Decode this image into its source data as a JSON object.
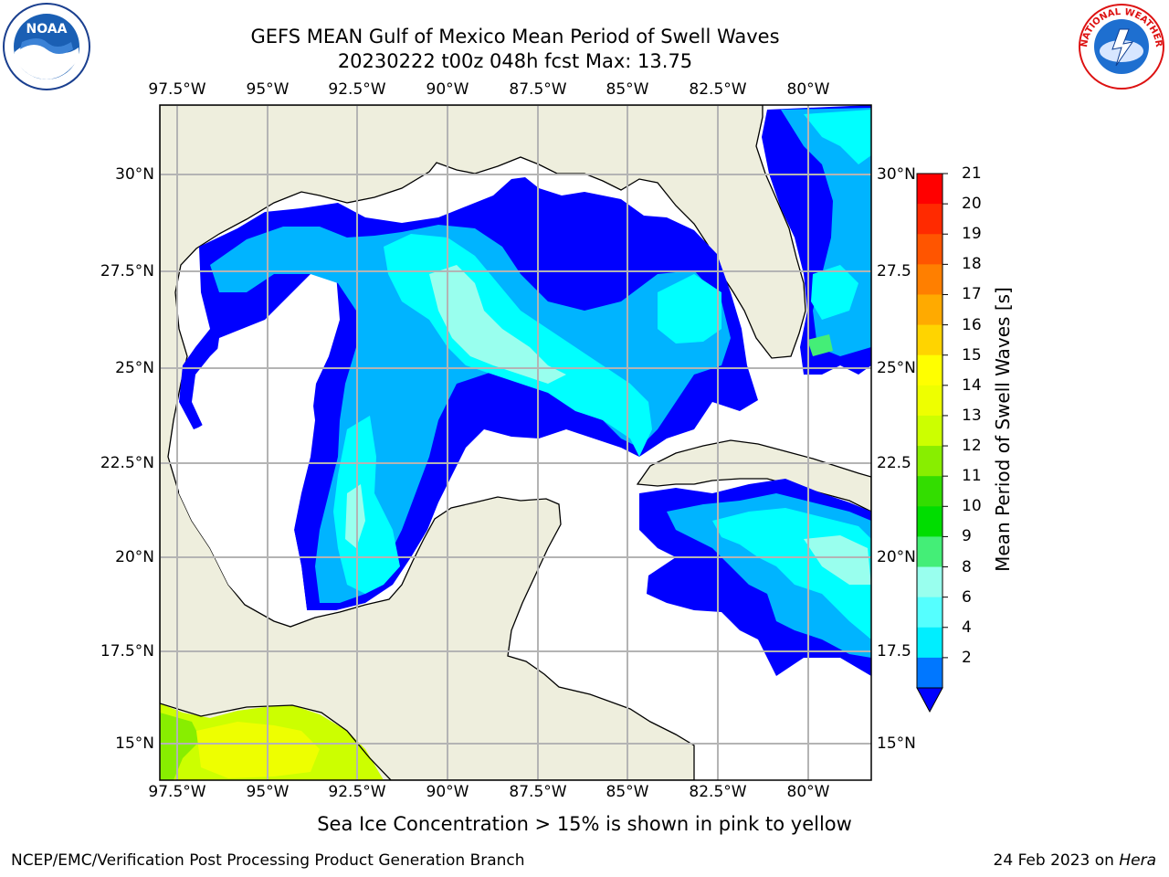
{
  "title": {
    "line1": "GEFS MEAN Gulf of Mexico Mean Period of Swell Waves",
    "line2": "20230222 t00z 048h fcst   Max: 13.75"
  },
  "axes": {
    "lon_ticks": [
      "97.5°W",
      "95°W",
      "92.5°W",
      "90°W",
      "87.5°W",
      "85°W",
      "82.5°W",
      "80°W"
    ],
    "lat_ticks_left": [
      "30°N",
      "27.5°N",
      "25°N",
      "22.5°N",
      "20°N",
      "17.5°N",
      "15°N"
    ],
    "lat_ticks_right": [
      "30°N",
      "27.5",
      "25°N",
      "22.5",
      "20°N",
      "17.5",
      "15°N"
    ]
  },
  "colorbar": {
    "label": "Mean Period of Swell Waves [s]",
    "ticks": [
      "21",
      "20",
      "19",
      "18",
      "17",
      "16",
      "15",
      "14",
      "13",
      "12",
      "11",
      "10",
      "9",
      "8",
      "6",
      "4",
      "2"
    ],
    "colors": [
      "#ff0000",
      "#ff2a00",
      "#ff5500",
      "#ff7f00",
      "#ffaa00",
      "#ffd400",
      "#ffff00",
      "#eeff00",
      "#ccff00",
      "#88ee00",
      "#33dd00",
      "#00dd00",
      "#44ee77",
      "#99ffee",
      "#55ffff",
      "#00eeff",
      "#0077ff"
    ],
    "under_color": "#0000ff"
  },
  "map": {
    "land_color": "#eeeedd",
    "ocean_color": "#ffffff",
    "grid_color": "#b4b4b4"
  },
  "ice_note": "Sea Ice Concentration > 15% is shown in pink to yellow",
  "footer": {
    "left": "NCEP/EMC/Verification Post Processing Product Generation Branch",
    "right_date": "24 Feb 2023 on ",
    "right_host": "Hera"
  },
  "logos": {
    "noaa_text": "NOAA",
    "nws_text": "NATIONAL WEATHER SERVICE"
  }
}
